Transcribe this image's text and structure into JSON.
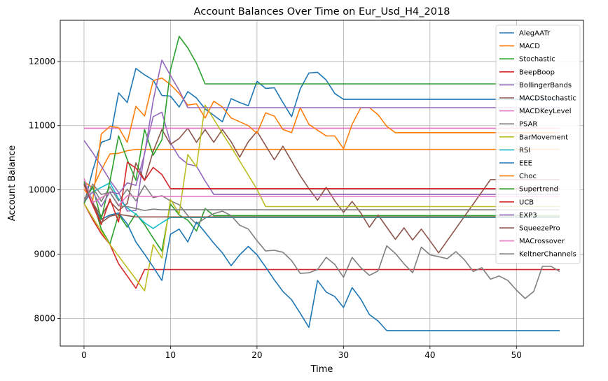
{
  "chart_data": {
    "type": "line",
    "title": "Account Balances Over Time on Eur_Usd_H4_2018",
    "xlabel": "Time",
    "ylabel": "Account Balance",
    "xlim": [
      -2.75,
      57.75
    ],
    "ylim": [
      7570,
      12640
    ],
    "xticks": [
      0,
      10,
      20,
      30,
      40,
      50
    ],
    "yticks": [
      8000,
      9000,
      10000,
      11000,
      12000
    ],
    "grid": true,
    "legend_position": "top-right",
    "series": [
      {
        "name": "AlegAATr",
        "color": "#1f77b4",
        "x": [
          0,
          1,
          2,
          3,
          4,
          5,
          6,
          7,
          8,
          9,
          10,
          11,
          12,
          13,
          14,
          15,
          16,
          17,
          18,
          19,
          20,
          21,
          22,
          23,
          24,
          25,
          26,
          27,
          28,
          29,
          30,
          35,
          55
        ],
        "y": [
          9780,
          10300,
          10740,
          10790,
          11510,
          11360,
          11890,
          11790,
          11710,
          11470,
          11460,
          11290,
          11530,
          11430,
          11260,
          11160,
          11060,
          11420,
          11360,
          11310,
          11690,
          11580,
          11590,
          11360,
          11140,
          11570,
          11820,
          11830,
          11710,
          11500,
          11410,
          11410,
          11410
        ]
      },
      {
        "name": "MACD",
        "color": "#ff7f0e",
        "x": [
          0,
          1,
          2,
          3,
          4,
          5,
          6,
          55
        ],
        "y": [
          10130,
          10030,
          10310,
          10560,
          10570,
          10610,
          10630,
          10630
        ]
      },
      {
        "name": "Stochastic",
        "color": "#2ca02c",
        "x": [
          0,
          1,
          2,
          3,
          4,
          5,
          6,
          7,
          8,
          9,
          10,
          11,
          12,
          13,
          14,
          15,
          55
        ],
        "y": [
          10130,
          9830,
          9390,
          9160,
          9620,
          9420,
          9630,
          9460,
          9250,
          9050,
          9780,
          9610,
          9530,
          9360,
          9710,
          9600,
          9600
        ]
      },
      {
        "name": "BeepBoop",
        "color": "#d62728",
        "x": [
          0,
          1,
          2,
          3,
          4,
          5,
          6,
          7,
          55
        ],
        "y": [
          9790,
          9540,
          9320,
          9150,
          8850,
          8660,
          8470,
          8760,
          8760
        ]
      },
      {
        "name": "BollingerBands",
        "color": "#9467bd",
        "x": [
          0,
          1,
          2,
          3,
          4,
          5,
          6,
          7,
          8,
          9,
          10,
          11,
          12,
          13,
          14,
          15,
          55
        ],
        "y": [
          10770,
          10580,
          10370,
          10150,
          9960,
          9670,
          9680,
          10580,
          11140,
          11210,
          10730,
          10510,
          10400,
          10370,
          10140,
          9930,
          9930
        ]
      },
      {
        "name": "MACDStochastic",
        "color": "#8c564b",
        "x": [
          0,
          1,
          2,
          3,
          4,
          5,
          6,
          7,
          8,
          9,
          10,
          11,
          12,
          13,
          14,
          15,
          16,
          17,
          18,
          19,
          20,
          21,
          22,
          23,
          24,
          25,
          26,
          27,
          28,
          29,
          30,
          31,
          32,
          33,
          34,
          35,
          36,
          37,
          38,
          39,
          40,
          41,
          42,
          43,
          44,
          45,
          46,
          47,
          55
        ],
        "y": [
          10100,
          9800,
          9590,
          9820,
          9680,
          9790,
          10420,
          10150,
          10600,
          10940,
          10710,
          10800,
          10960,
          10740,
          10940,
          10740,
          10940,
          10750,
          10510,
          10750,
          10910,
          10690,
          10470,
          10680,
          10450,
          10220,
          10020,
          9840,
          10040,
          9830,
          9650,
          9820,
          9640,
          9420,
          9610,
          9420,
          9230,
          9410,
          9220,
          9390,
          9210,
          9020,
          9210,
          9400,
          9590,
          9780,
          9970,
          10160,
          10160
        ]
      },
      {
        "name": "MACDKeyLevel",
        "color": "#e377c2",
        "x": [
          0,
          55
        ],
        "y": [
          10960,
          10960
        ]
      },
      {
        "name": "PSAR",
        "color": "#7f7f7f",
        "x": [
          0,
          1,
          2,
          3,
          4,
          5,
          6,
          7,
          8,
          9,
          10,
          11,
          12,
          13,
          14,
          15,
          16,
          17,
          18,
          19,
          20,
          21,
          22,
          23,
          24,
          25,
          26,
          27,
          28,
          29,
          30,
          31,
          32,
          33,
          34,
          35,
          36,
          37,
          38,
          39,
          40,
          41,
          42,
          43,
          44,
          45,
          46,
          47,
          48,
          49,
          50,
          51,
          52,
          53,
          54,
          55
        ],
        "y": [
          9860,
          10040,
          9820,
          10050,
          9830,
          10010,
          9830,
          10070,
          9880,
          9910,
          9830,
          9770,
          9600,
          9470,
          9560,
          9630,
          9670,
          9600,
          9450,
          9390,
          9210,
          9050,
          9060,
          9030,
          8900,
          8700,
          8710,
          8760,
          8950,
          8840,
          8640,
          8950,
          8790,
          8670,
          8740,
          9130,
          9010,
          8850,
          8710,
          9110,
          8990,
          8960,
          8930,
          9040,
          8910,
          8730,
          8790,
          8610,
          8660,
          8590,
          8440,
          8310,
          8420,
          8810,
          8810,
          8730
        ]
      },
      {
        "name": "BarMovement",
        "color": "#bcbd22",
        "x": [
          0,
          1,
          2,
          3,
          4,
          5,
          6,
          7,
          8,
          9,
          10,
          11,
          12,
          13,
          14,
          15,
          16,
          17,
          18,
          19,
          20,
          21,
          55
        ],
        "y": [
          9790,
          9570,
          9360,
          9150,
          8970,
          8790,
          8610,
          8430,
          9150,
          8940,
          9850,
          9630,
          10550,
          10360,
          11320,
          11100,
          10880,
          10670,
          10450,
          10230,
          10010,
          9740,
          9740
        ]
      },
      {
        "name": "RSI",
        "color": "#17becf",
        "x": [
          0,
          1,
          2,
          3,
          4,
          5,
          6,
          7,
          8,
          9,
          10,
          55
        ],
        "y": [
          9810,
          9970,
          10040,
          10110,
          9860,
          9720,
          9620,
          9490,
          9400,
          9490,
          9570,
          9570
        ]
      },
      {
        "name": "EEE",
        "color": "#1f77b4",
        "x": [
          0,
          1,
          2,
          3,
          4,
          5,
          6,
          7,
          8,
          9,
          10,
          11,
          12,
          13,
          14,
          15,
          16,
          17,
          18,
          19,
          20,
          21,
          22,
          23,
          24,
          25,
          26,
          27,
          28,
          29,
          30,
          31,
          32,
          33,
          34,
          35,
          55
        ],
        "y": [
          10100,
          9780,
          9540,
          9610,
          9640,
          9470,
          9190,
          9000,
          8800,
          8590,
          9310,
          9390,
          9190,
          9500,
          9340,
          9170,
          9020,
          8820,
          8990,
          9120,
          8990,
          8800,
          8600,
          8420,
          8290,
          8080,
          7860,
          8590,
          8410,
          8340,
          8170,
          8480,
          8300,
          8060,
          7960,
          7810,
          7810
        ]
      },
      {
        "name": "Choc",
        "color": "#ff7f0e",
        "x": [
          0,
          1,
          2,
          3,
          4,
          5,
          6,
          7,
          8,
          9,
          10,
          11,
          12,
          13,
          14,
          15,
          16,
          17,
          18,
          19,
          20,
          21,
          22,
          23,
          24,
          25,
          26,
          27,
          28,
          29,
          30,
          31,
          32,
          33,
          34,
          35,
          36,
          55
        ],
        "y": [
          10010,
          9830,
          10870,
          10990,
          10970,
          10740,
          11300,
          11150,
          11700,
          11740,
          11640,
          11500,
          11320,
          11340,
          11120,
          11380,
          11290,
          11120,
          11060,
          11000,
          10880,
          11200,
          11150,
          10940,
          10890,
          11280,
          11020,
          10930,
          10840,
          10840,
          10640,
          11020,
          11280,
          11280,
          11170,
          10990,
          10890,
          10890
        ]
      },
      {
        "name": "Supertrend",
        "color": "#2ca02c",
        "x": [
          0,
          1,
          2,
          3,
          4,
          5,
          6,
          7,
          8,
          9,
          10,
          11,
          12,
          13,
          14,
          15,
          16,
          55
        ],
        "y": [
          9790,
          10050,
          9540,
          10140,
          10840,
          10470,
          10150,
          10940,
          10540,
          10780,
          11870,
          12390,
          12210,
          11970,
          11650,
          11650,
          11650,
          11650
        ]
      },
      {
        "name": "UCB",
        "color": "#d62728",
        "x": [
          0,
          1,
          2,
          3,
          4,
          5,
          6,
          7,
          8,
          9,
          10,
          55
        ],
        "y": [
          10080,
          9760,
          9460,
          9860,
          9500,
          10430,
          10340,
          10150,
          10350,
          10240,
          10020,
          10020
        ]
      },
      {
        "name": "EXP3",
        "color": "#9467bd",
        "x": [
          0,
          1,
          2,
          3,
          4,
          5,
          6,
          7,
          8,
          9,
          10,
          11,
          12,
          55
        ],
        "y": [
          9830,
          9970,
          9740,
          9970,
          9940,
          10110,
          10070,
          10560,
          11390,
          12020,
          11780,
          11550,
          11280,
          11280
        ]
      },
      {
        "name": "SqueezePro",
        "color": "#8c564b",
        "x": [
          0,
          1,
          2,
          3,
          4,
          5,
          6,
          7,
          8,
          9,
          10,
          11,
          12,
          13,
          14,
          15,
          16,
          55
        ],
        "y": [
          10090,
          9810,
          9490,
          9590,
          9620,
          9600,
          9580,
          9580,
          9580,
          9580,
          9580,
          9580,
          9580,
          9580,
          9580,
          9580,
          9580,
          9580
        ]
      },
      {
        "name": "MACrossover",
        "color": "#e377c2",
        "x": [
          0,
          1,
          2,
          3,
          4,
          5,
          6,
          7,
          8,
          9,
          10,
          55
        ],
        "y": [
          10180,
          9800,
          9880,
          9960,
          9760,
          9910,
          9900,
          9900,
          9900,
          9900,
          9900,
          9900
        ]
      },
      {
        "name": "KeltnerChannels",
        "color": "#7f7f7f",
        "x": [
          0,
          1,
          2,
          3,
          4,
          5,
          6,
          7,
          8,
          9,
          10,
          55
        ],
        "y": [
          9810,
          10090,
          9930,
          9960,
          9750,
          9740,
          9710,
          9680,
          9700,
          9690,
          9690,
          9690
        ]
      }
    ]
  }
}
